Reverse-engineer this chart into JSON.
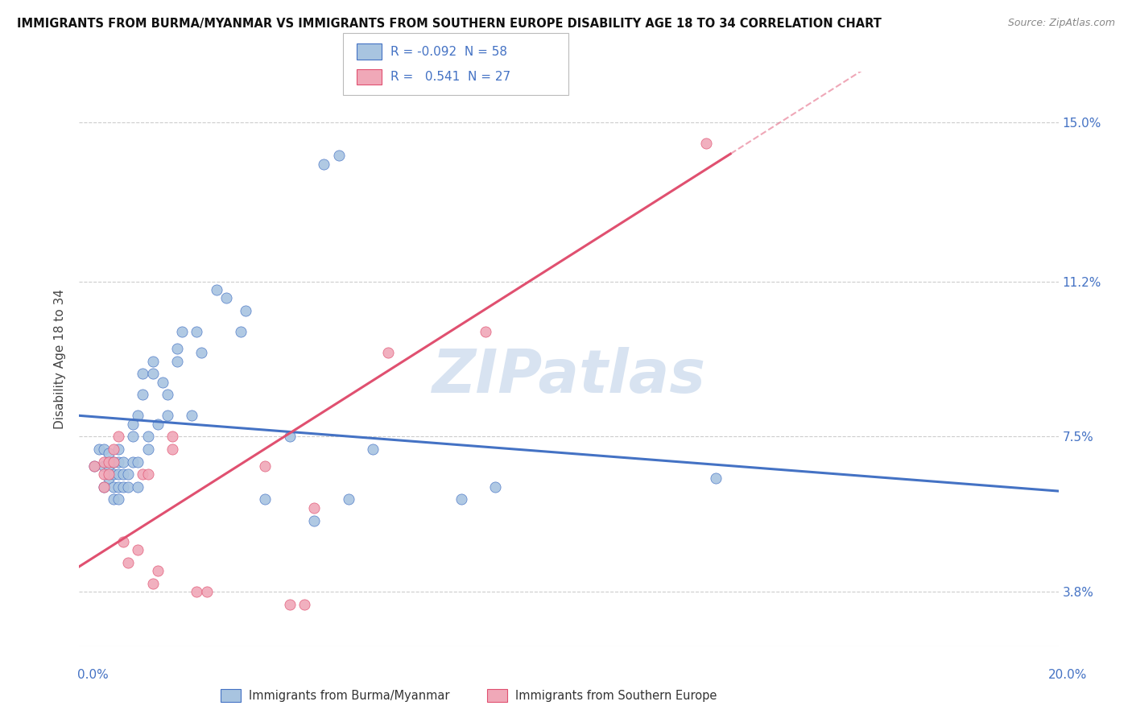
{
  "title": "IMMIGRANTS FROM BURMA/MYANMAR VS IMMIGRANTS FROM SOUTHERN EUROPE DISABILITY AGE 18 TO 34 CORRELATION CHART",
  "source": "Source: ZipAtlas.com",
  "ylabel": "Disability Age 18 to 34",
  "yticks": [
    0.038,
    0.075,
    0.112,
    0.15
  ],
  "ytick_labels": [
    "3.8%",
    "7.5%",
    "11.2%",
    "15.0%"
  ],
  "xlim": [
    0.0,
    0.2
  ],
  "ylim": [
    0.025,
    0.162
  ],
  "legend1_R": "-0.092",
  "legend1_N": "58",
  "legend2_R": "0.541",
  "legend2_N": "27",
  "color_blue": "#a8c4e0",
  "color_pink": "#f0a8b8",
  "line_blue": "#4472c4",
  "line_pink": "#e05070",
  "watermark": "ZIPatlas",
  "blue_intercept": 0.08,
  "blue_slope": -0.09,
  "pink_intercept": 0.044,
  "pink_slope": 0.74,
  "blue_points": [
    [
      0.003,
      0.068
    ],
    [
      0.004,
      0.072
    ],
    [
      0.005,
      0.063
    ],
    [
      0.005,
      0.068
    ],
    [
      0.005,
      0.072
    ],
    [
      0.006,
      0.065
    ],
    [
      0.006,
      0.068
    ],
    [
      0.006,
      0.071
    ],
    [
      0.007,
      0.06
    ],
    [
      0.007,
      0.063
    ],
    [
      0.007,
      0.066
    ],
    [
      0.007,
      0.069
    ],
    [
      0.008,
      0.06
    ],
    [
      0.008,
      0.063
    ],
    [
      0.008,
      0.066
    ],
    [
      0.008,
      0.069
    ],
    [
      0.008,
      0.072
    ],
    [
      0.009,
      0.063
    ],
    [
      0.009,
      0.066
    ],
    [
      0.009,
      0.069
    ],
    [
      0.01,
      0.063
    ],
    [
      0.01,
      0.066
    ],
    [
      0.011,
      0.078
    ],
    [
      0.011,
      0.069
    ],
    [
      0.011,
      0.075
    ],
    [
      0.012,
      0.08
    ],
    [
      0.012,
      0.063
    ],
    [
      0.012,
      0.069
    ],
    [
      0.013,
      0.085
    ],
    [
      0.013,
      0.09
    ],
    [
      0.014,
      0.072
    ],
    [
      0.014,
      0.075
    ],
    [
      0.015,
      0.09
    ],
    [
      0.015,
      0.093
    ],
    [
      0.016,
      0.078
    ],
    [
      0.017,
      0.088
    ],
    [
      0.018,
      0.08
    ],
    [
      0.018,
      0.085
    ],
    [
      0.02,
      0.093
    ],
    [
      0.02,
      0.096
    ],
    [
      0.021,
      0.1
    ],
    [
      0.023,
      0.08
    ],
    [
      0.024,
      0.1
    ],
    [
      0.025,
      0.095
    ],
    [
      0.028,
      0.11
    ],
    [
      0.03,
      0.108
    ],
    [
      0.033,
      0.1
    ],
    [
      0.034,
      0.105
    ],
    [
      0.038,
      0.06
    ],
    [
      0.043,
      0.075
    ],
    [
      0.048,
      0.055
    ],
    [
      0.05,
      0.14
    ],
    [
      0.053,
      0.142
    ],
    [
      0.055,
      0.06
    ],
    [
      0.06,
      0.072
    ],
    [
      0.078,
      0.06
    ],
    [
      0.085,
      0.063
    ],
    [
      0.13,
      0.065
    ]
  ],
  "pink_points": [
    [
      0.003,
      0.068
    ],
    [
      0.005,
      0.063
    ],
    [
      0.005,
      0.066
    ],
    [
      0.005,
      0.069
    ],
    [
      0.006,
      0.066
    ],
    [
      0.006,
      0.069
    ],
    [
      0.007,
      0.072
    ],
    [
      0.007,
      0.069
    ],
    [
      0.008,
      0.075
    ],
    [
      0.009,
      0.05
    ],
    [
      0.01,
      0.045
    ],
    [
      0.012,
      0.048
    ],
    [
      0.013,
      0.066
    ],
    [
      0.014,
      0.066
    ],
    [
      0.015,
      0.04
    ],
    [
      0.016,
      0.043
    ],
    [
      0.019,
      0.075
    ],
    [
      0.019,
      0.072
    ],
    [
      0.024,
      0.038
    ],
    [
      0.026,
      0.038
    ],
    [
      0.038,
      0.068
    ],
    [
      0.043,
      0.035
    ],
    [
      0.046,
      0.035
    ],
    [
      0.048,
      0.058
    ],
    [
      0.063,
      0.095
    ],
    [
      0.083,
      0.1
    ],
    [
      0.128,
      0.145
    ]
  ]
}
